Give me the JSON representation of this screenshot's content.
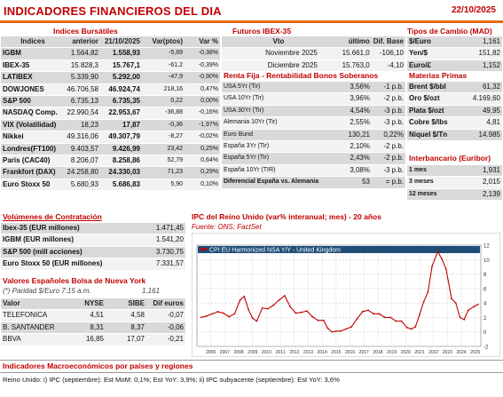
{
  "header": {
    "title": "INDICADORES FINANCIEROS DEL DIA",
    "date": "22/10/2025"
  },
  "bursatiles": {
    "title": "Indices Bursátiles",
    "cols": [
      "Indices",
      "anterior",
      "21/10/2025",
      "Var(ptos)",
      "Var %"
    ],
    "rows": [
      {
        "name": "IGBM",
        "prev": "1.564,82",
        "cur": "1.558,93",
        "vp": "-5,89",
        "pct": "-0,38%"
      },
      {
        "name": "IBEX-35",
        "prev": "15.828,3",
        "cur": "15.767,1",
        "vp": "-61,2",
        "pct": "-0,39%"
      },
      {
        "name": "LATIBEX",
        "prev": "5.339,90",
        "cur": "5.292,00",
        "vp": "-47,9",
        "pct": "-0,90%"
      },
      {
        "name": "DOWJONES",
        "prev": "46.706,58",
        "cur": "46.924,74",
        "vp": "218,16",
        "pct": "0,47%"
      },
      {
        "name": "S&P 500",
        "prev": "6.735,13",
        "cur": "6.735,35",
        "vp": "0,22",
        "pct": "0,00%"
      },
      {
        "name": "NASDAQ Comp.",
        "prev": "22.990,54",
        "cur": "22.953,67",
        "vp": "-36,88",
        "pct": "-0,16%"
      },
      {
        "name": "VIX (Volatilidad)",
        "prev": "18,23",
        "cur": "17,87",
        "vp": "-0,36",
        "pct": "-1,97%"
      },
      {
        "name": "Nikkei",
        "prev": "49.316,06",
        "cur": "49.307,79",
        "vp": "-8,27",
        "pct": "-0,02%"
      },
      {
        "name": "Londres(FT100)",
        "prev": "9.403,57",
        "cur": "9.426,99",
        "vp": "23,42",
        "pct": "0,25%"
      },
      {
        "name": "Paris (CAC40)",
        "prev": "8.206,07",
        "cur": "8.258,86",
        "vp": "52,79",
        "pct": "0,64%"
      },
      {
        "name": "Frankfort (DAX)",
        "prev": "24.258,80",
        "cur": "24.330,03",
        "vp": "71,23",
        "pct": "0,29%"
      },
      {
        "name": "Euro Stoxx 50",
        "prev": "5.680,93",
        "cur": "5.686,83",
        "vp": "5,90",
        "pct": "0,10%"
      }
    ]
  },
  "futuros": {
    "title": "Futuros IBEX-35",
    "cols": [
      "Vto",
      "último",
      "Dif. Base"
    ],
    "rows": [
      {
        "vto": "Noviembre 2025",
        "last": "15.661,0",
        "base": "-106,10"
      },
      {
        "vto": "Diciembre 2025",
        "last": "15.763,0",
        "base": "-4,10"
      }
    ]
  },
  "renta_fija": {
    "title": "Renta Fija - Rentabilidad Bonos Soberanos",
    "rows": [
      {
        "name": "USA 5Yr (Tir)",
        "val": "3,56%",
        "chg": "-1 p.b."
      },
      {
        "name": "USA 10Yr (Tir)",
        "val": "3,96%",
        "chg": "-2 p.b."
      },
      {
        "name": "USA 30Yr (Tir)",
        "val": "4,54%",
        "chg": "-3 p.b."
      },
      {
        "name": "Alemania 10Yr (Tir)",
        "val": "2,55%",
        "chg": "-3 p.b."
      },
      {
        "name": "Euro Bund",
        "val": "130,21",
        "chg": "0,22%"
      },
      {
        "name": "España 3Yr (Tir)",
        "val": "2,10%",
        "chg": "-2 p.b."
      },
      {
        "name": "España 5Yr (Tir)",
        "val": "2,43%",
        "chg": "-2 p.b."
      },
      {
        "name": "España 10Yr (TIR)",
        "val": "3,08%",
        "chg": "-3 p.b."
      },
      {
        "name": "Diferencial España vs. Alemania",
        "val": "53",
        "chg": "= p.b."
      }
    ]
  },
  "cambio": {
    "title": "Tipos de Cambio (MAD)",
    "rows": [
      {
        "name": "$/Euro",
        "val": "1,161"
      },
      {
        "name": "Yen/$",
        "val": "151,82"
      },
      {
        "name": "Euro/£",
        "val": "1,152"
      }
    ]
  },
  "materias": {
    "title": "Materias Primas",
    "rows": [
      {
        "name": "Brent $/bbl",
        "val": "61,32"
      },
      {
        "name": "Oro $/ozt",
        "val": "4.169,60"
      },
      {
        "name": "Plata $/ozt",
        "val": "49,95"
      },
      {
        "name": "Cobre $/lbs",
        "val": "4,81"
      },
      {
        "name": "Niquel $/Tn",
        "val": "14.985"
      }
    ]
  },
  "euribor": {
    "title": "Interbancario (Euribor)",
    "rows": [
      {
        "name": "1 mes",
        "val": "1,931"
      },
      {
        "name": "3 meses",
        "val": "2,015"
      },
      {
        "name": "12 meses",
        "val": "2,139"
      }
    ]
  },
  "volumenes": {
    "title": "Volúmenes de Contratación",
    "rows": [
      {
        "name": "Ibex-35 (EUR millones)",
        "val": "1.471,45"
      },
      {
        "name": "IGBM (EUR millones)",
        "val": "1.541,20"
      },
      {
        "name": "S&P 500 (mill acciones)",
        "val": "3.730,75"
      },
      {
        "name": "Euro Stoxx 50 (EUR millones)",
        "val": "7.331,57"
      }
    ]
  },
  "nueva_york": {
    "title": "Valores Españoles Bolsa de Nueva York",
    "note": "(*) Paridad $/Euro 7:15 a.m.",
    "note_val": "1,161",
    "cols": [
      "Valor",
      "NYSE",
      "SIBE",
      "Dif euros"
    ],
    "rows": [
      {
        "name": "TELEFONICA",
        "nyse": "4,51",
        "sibe": "4,58",
        "dif": "-0,07"
      },
      {
        "name": "B. SANTANDER",
        "nyse": "8,31",
        "sibe": "8,37",
        "dif": "-0,06"
      },
      {
        "name": "BBVA",
        "nyse": "16,85",
        "sibe": "17,07",
        "dif": "-0,21"
      }
    ]
  },
  "ipc": {
    "title": "IPC del Reino Unido (var% interanual; mes) - 20 años",
    "source": "Fuente: ONS; FactSet"
  },
  "chart_data": {
    "type": "line",
    "title": "CPI EU Harmonized NSA Y/Y - United Kingdom",
    "xlabel": "",
    "ylabel": "",
    "ylim": [
      -2,
      12
    ],
    "yticks": [
      -2,
      0,
      2,
      4,
      6,
      8,
      10,
      12
    ],
    "xticks": [
      "2006",
      "2007",
      "2008",
      "2009",
      "2010",
      "2011",
      "2012",
      "2013",
      "2014",
      "2015",
      "2016",
      "2017",
      "2018",
      "2019",
      "2020",
      "2021",
      "2022",
      "2023",
      "2024",
      "2025"
    ],
    "x": [
      2005.8,
      2006.2,
      2006.6,
      2007.0,
      2007.4,
      2007.8,
      2008.2,
      2008.6,
      2008.9,
      2009.2,
      2009.5,
      2009.8,
      2010.2,
      2010.6,
      2011.0,
      2011.4,
      2011.8,
      2012.2,
      2012.6,
      2013.0,
      2013.4,
      2013.8,
      2014.2,
      2014.6,
      2014.9,
      2015.2,
      2015.5,
      2015.8,
      2016.2,
      2016.6,
      2017.0,
      2017.4,
      2017.8,
      2018.2,
      2018.6,
      2019.0,
      2019.4,
      2019.8,
      2020.2,
      2020.6,
      2020.9,
      2021.2,
      2021.5,
      2021.8,
      2022.1,
      2022.4,
      2022.8,
      2023.1,
      2023.4,
      2023.8,
      2024.1,
      2024.4,
      2024.7,
      2025.0,
      2025.4,
      2025.7
    ],
    "series": [
      {
        "name": "",
        "color": "#c00000",
        "values": [
          2.0,
          2.2,
          2.5,
          2.8,
          2.6,
          2.1,
          2.5,
          4.4,
          4.9,
          3.1,
          1.9,
          1.5,
          3.3,
          3.2,
          3.7,
          4.4,
          5.0,
          3.5,
          2.6,
          2.7,
          2.9,
          2.1,
          1.6,
          1.6,
          0.5,
          0.0,
          0.1,
          0.1,
          0.4,
          0.7,
          1.8,
          2.8,
          3.0,
          2.5,
          2.5,
          2.0,
          2.0,
          1.5,
          1.5,
          0.6,
          0.4,
          0.7,
          2.4,
          4.2,
          5.5,
          9.1,
          11.1,
          10.1,
          8.7,
          4.6,
          4.0,
          2.0,
          1.7,
          3.0,
          3.5,
          3.8
        ]
      }
    ]
  },
  "macro": {
    "title": "Indicadores Macroeconómicos por países y regiones",
    "text": "Reino Unido: i) IPC (septiembre): Est MoM: 0,1%; Est YoY: 3,9%; ii) IPC subyacente (septiembre): Est YoY: 3,6%"
  }
}
